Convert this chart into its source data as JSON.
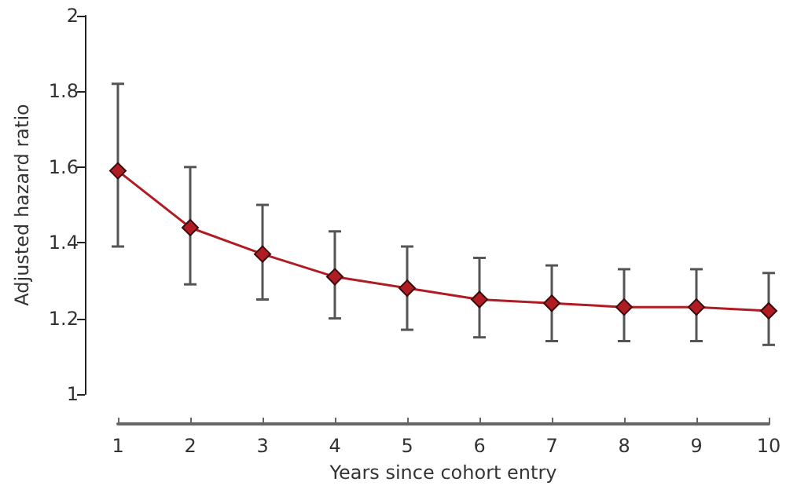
{
  "chart_data": {
    "type": "line",
    "xlabel": "Years since cohort entry",
    "ylabel": "Adjusted hazard ratio",
    "x": [
      1,
      2,
      3,
      4,
      5,
      6,
      7,
      8,
      9,
      10
    ],
    "series": [
      {
        "color": "#b01c23",
        "values": [
          1.59,
          1.44,
          1.37,
          1.31,
          1.28,
          1.25,
          1.24,
          1.23,
          1.23,
          1.22
        ],
        "errors": [
          [
            1.39,
            1.82
          ],
          [
            1.29,
            1.6
          ],
          [
            1.25,
            1.5
          ],
          [
            1.2,
            1.43
          ],
          [
            1.17,
            1.39
          ],
          [
            1.15,
            1.36
          ],
          [
            1.14,
            1.34
          ],
          [
            1.14,
            1.33
          ],
          [
            1.14,
            1.33
          ],
          [
            1.13,
            1.32
          ]
        ]
      }
    ],
    "xlim": [
      1,
      10
    ],
    "xticks": [
      1,
      2,
      3,
      4,
      5,
      6,
      7,
      8,
      9,
      10
    ],
    "ylim": [
      1,
      2
    ],
    "yticks": [
      1,
      1.2,
      1.4,
      1.6,
      1.8,
      2
    ],
    "grid": false,
    "marker": "diamond",
    "line_style": "solid"
  }
}
